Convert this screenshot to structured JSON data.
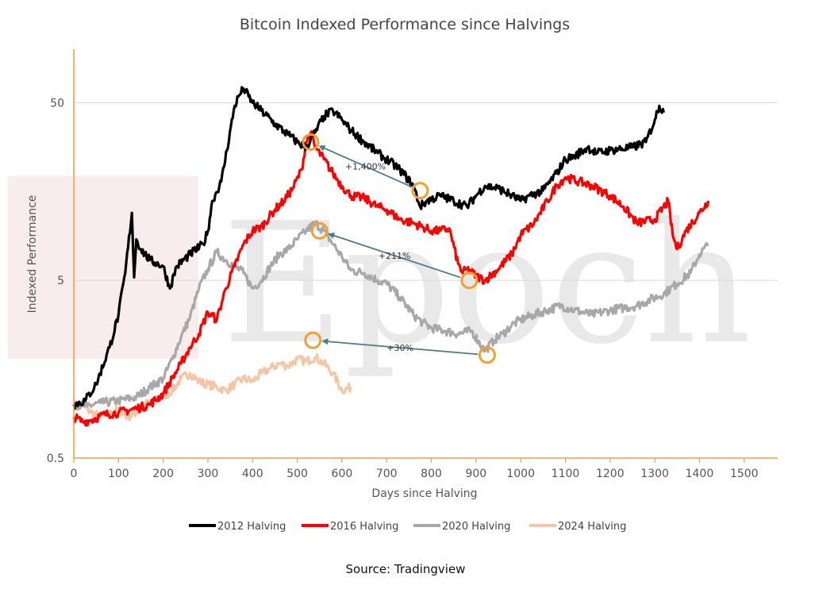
{
  "chart_data": {
    "type": "line",
    "title": "Bitcoin Indexed Performance since Halvings",
    "xlabel": "Days since Halving",
    "ylabel": "Indexed Performance",
    "xlim": [
      0,
      1575
    ],
    "ylim": [
      0.5,
      100
    ],
    "yscale": "log",
    "x_ticks": [
      0,
      100,
      200,
      300,
      400,
      500,
      600,
      700,
      800,
      900,
      1000,
      1100,
      1200,
      1300,
      1400,
      1500
    ],
    "y_ticks": [
      0.5,
      5,
      50
    ],
    "grid": "horizontal",
    "legend_position": "bottom",
    "series": [
      {
        "name": "2012 Halving",
        "color": "#000000",
        "x": [
          0,
          25,
          50,
          80,
          100,
          115,
          130,
          135,
          140,
          150,
          170,
          200,
          215,
          230,
          260,
          290,
          300,
          310,
          330,
          360,
          370,
          380,
          400,
          420,
          450,
          480,
          500,
          520,
          540,
          560,
          580,
          600,
          620,
          650,
          680,
          700,
          730,
          760,
          775,
          790,
          820,
          850,
          880,
          900,
          920,
          950,
          980,
          1000,
          1020,
          1050,
          1080,
          1100,
          1120,
          1150,
          1170,
          1200,
          1250,
          1280,
          1300,
          1310,
          1320
        ],
        "y": [
          1.0,
          1.05,
          1.3,
          2.1,
          3.2,
          5.5,
          12,
          5.2,
          8.5,
          7.5,
          6.5,
          6.0,
          4.5,
          6.0,
          7.0,
          8.0,
          9.5,
          14,
          18,
          48,
          55,
          60,
          50,
          45,
          38,
          33,
          30,
          28,
          34,
          42,
          45,
          40,
          35,
          30,
          26,
          24,
          21,
          17,
          13,
          14,
          15,
          14,
          13,
          15,
          17,
          16.5,
          15,
          14,
          15,
          16,
          20,
          24,
          25,
          28,
          26,
          27,
          28,
          30,
          40,
          48,
          44
        ]
      },
      {
        "name": "2016 Halving",
        "color": "#ff0000",
        "x": [
          0,
          20,
          40,
          70,
          100,
          140,
          170,
          200,
          220,
          240,
          260,
          280,
          300,
          320,
          340,
          360,
          380,
          400,
          420,
          450,
          470,
          490,
          510,
          520,
          530,
          540,
          560,
          580,
          600,
          620,
          650,
          680,
          700,
          730,
          760,
          780,
          800,
          820,
          840,
          860,
          870,
          880,
          900,
          920,
          950,
          980,
          1000,
          1030,
          1060,
          1080,
          1100,
          1130,
          1160,
          1200,
          1230,
          1260,
          1300,
          1330,
          1340,
          1350,
          1370,
          1400,
          1420
        ],
        "y": [
          0.85,
          0.8,
          0.82,
          0.88,
          0.9,
          0.95,
          1.0,
          1.15,
          1.4,
          1.7,
          2.1,
          2.5,
          3.3,
          3.0,
          4.5,
          6.0,
          8.0,
          9.5,
          10,
          12.5,
          14,
          16.5,
          21,
          30,
          34,
          28,
          24,
          20,
          17,
          15,
          14.5,
          13,
          12.5,
          11,
          10.5,
          10,
          9.5,
          9.5,
          9.8,
          6.2,
          5.5,
          5.8,
          5.3,
          5.0,
          5.8,
          7.0,
          9.0,
          10.5,
          14,
          17,
          19,
          18,
          17,
          15,
          13,
          10.5,
          11,
          14,
          9.0,
          7.5,
          9.5,
          12,
          14
        ]
      },
      {
        "name": "2020 Halving",
        "color": "#a8a8a8",
        "x": [
          0,
          30,
          60,
          100,
          140,
          170,
          200,
          220,
          240,
          260,
          280,
          300,
          320,
          340,
          360,
          380,
          400,
          420,
          440,
          460,
          480,
          500,
          520,
          540,
          560,
          580,
          600,
          620,
          650,
          680,
          700,
          730,
          760,
          780,
          800,
          830,
          860,
          890,
          920,
          940,
          960,
          980,
          1000,
          1030,
          1060,
          1090,
          1120,
          1160,
          1200,
          1230,
          1260,
          1290,
          1320,
          1350,
          1380,
          1400,
          1420
        ],
        "y": [
          1.0,
          0.98,
          1.02,
          1.05,
          1.1,
          1.25,
          1.4,
          1.8,
          2.4,
          3.1,
          4.5,
          5.8,
          7.2,
          6.5,
          6.0,
          5.5,
          4.5,
          5.0,
          6.0,
          7.0,
          7.5,
          8.5,
          9.5,
          10.5,
          9.5,
          8.0,
          6.8,
          5.7,
          5.5,
          5.0,
          4.8,
          4.0,
          3.2,
          2.9,
          2.7,
          2.6,
          2.5,
          2.6,
          2.0,
          2.3,
          2.5,
          2.8,
          3.0,
          3.2,
          3.4,
          3.6,
          3.4,
          3.2,
          3.4,
          3.5,
          3.6,
          3.9,
          4.2,
          4.8,
          5.5,
          7.0,
          8.0
        ]
      },
      {
        "name": "2024 Halving",
        "color": "#f5c6a5",
        "x": [
          0,
          20,
          40,
          60,
          80,
          100,
          120,
          140,
          160,
          180,
          200,
          220,
          240,
          260,
          280,
          300,
          320,
          340,
          360,
          380,
          400,
          420,
          440,
          460,
          480,
          500,
          520,
          540,
          560,
          580,
          600,
          620
        ],
        "y": [
          1.0,
          0.98,
          0.9,
          0.85,
          0.88,
          0.95,
          0.85,
          0.9,
          1.0,
          1.05,
          1.1,
          1.2,
          1.4,
          1.5,
          1.35,
          1.3,
          1.25,
          1.2,
          1.3,
          1.4,
          1.35,
          1.5,
          1.6,
          1.7,
          1.65,
          1.8,
          1.75,
          1.85,
          1.7,
          1.5,
          1.2,
          1.25
        ]
      }
    ],
    "annotations": [
      {
        "text": "+1,400%",
        "from": {
          "x": 775,
          "y": 16
        },
        "to": {
          "x": 530,
          "y": 30
        }
      },
      {
        "text": "+211%",
        "from": {
          "x": 885,
          "y": 5
        },
        "to": {
          "x": 550,
          "y": 9.5
        }
      },
      {
        "text": "+30%",
        "from": {
          "x": 925,
          "y": 1.9
        },
        "to": {
          "x": 535,
          "y": 2.3
        }
      }
    ],
    "source": "Source: Tradingview",
    "watermark": "Epoch",
    "axis_color": "#f0a040",
    "marker_color": "#f0a030",
    "arrow_color": "#4a7a92"
  }
}
